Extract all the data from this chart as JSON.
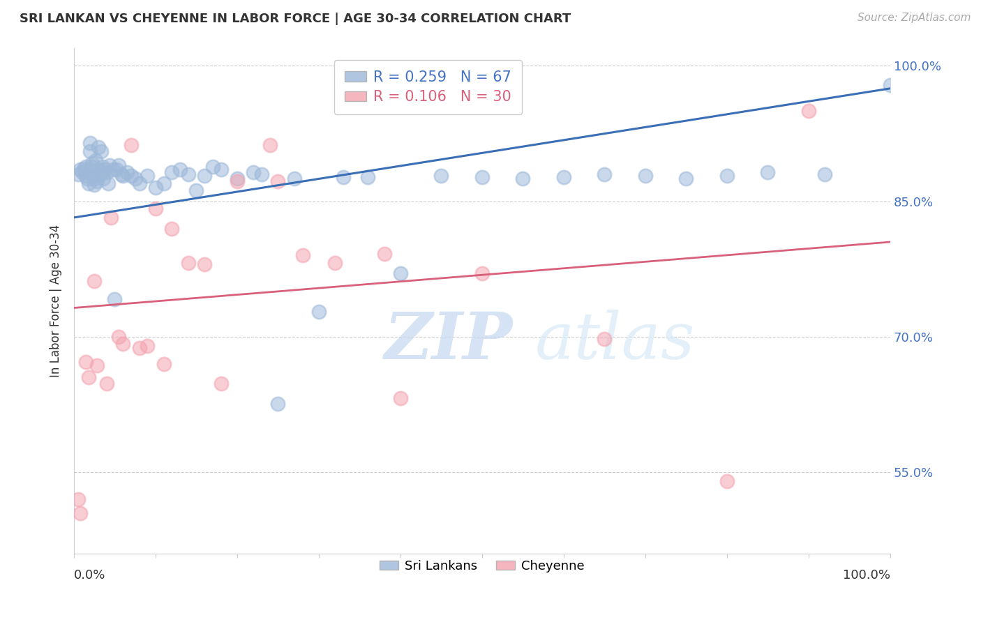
{
  "title": "SRI LANKAN VS CHEYENNE IN LABOR FORCE | AGE 30-34 CORRELATION CHART",
  "source": "Source: ZipAtlas.com",
  "ylabel": "In Labor Force | Age 30-34",
  "xlim": [
    0.0,
    1.0
  ],
  "ylim": [
    0.46,
    1.02
  ],
  "yticks": [
    0.55,
    0.7,
    0.85,
    1.0
  ],
  "ytick_labels": [
    "55.0%",
    "70.0%",
    "85.0%",
    "100.0%"
  ],
  "legend_blue_r": "R = 0.259",
  "legend_blue_n": "N = 67",
  "legend_pink_r": "R = 0.106",
  "legend_pink_n": "N = 30",
  "legend_blue_label": "Sri Lankans",
  "legend_pink_label": "Cheyenne",
  "blue_color": "#9DB8D9",
  "pink_color": "#F4A4B0",
  "trendline_blue_color": "#3A6EB5",
  "trendline_pink_color": "#D9607A",
  "watermark_zip": "ZIP",
  "watermark_atlas": "atlas",
  "blue_scatter_x": [
    0.005,
    0.008,
    0.01,
    0.012,
    0.015,
    0.015,
    0.016,
    0.018,
    0.02,
    0.02,
    0.022,
    0.022,
    0.023,
    0.025,
    0.025,
    0.027,
    0.028,
    0.03,
    0.03,
    0.032,
    0.033,
    0.035,
    0.036,
    0.038,
    0.04,
    0.042,
    0.044,
    0.048,
    0.05,
    0.052,
    0.055,
    0.058,
    0.06,
    0.065,
    0.07,
    0.075,
    0.08,
    0.09,
    0.1,
    0.11,
    0.12,
    0.13,
    0.14,
    0.15,
    0.16,
    0.17,
    0.18,
    0.2,
    0.22,
    0.23,
    0.25,
    0.27,
    0.3,
    0.33,
    0.36,
    0.4,
    0.45,
    0.5,
    0.55,
    0.6,
    0.65,
    0.7,
    0.75,
    0.8,
    0.85,
    0.92,
    1.0
  ],
  "blue_scatter_y": [
    0.88,
    0.885,
    0.882,
    0.886,
    0.888,
    0.878,
    0.875,
    0.87,
    0.915,
    0.905,
    0.892,
    0.888,
    0.878,
    0.875,
    0.868,
    0.895,
    0.872,
    0.91,
    0.885,
    0.88,
    0.905,
    0.888,
    0.875,
    0.885,
    0.882,
    0.87,
    0.89,
    0.885,
    0.742,
    0.885,
    0.89,
    0.88,
    0.878,
    0.882,
    0.878,
    0.875,
    0.87,
    0.878,
    0.865,
    0.87,
    0.882,
    0.885,
    0.88,
    0.862,
    0.878,
    0.888,
    0.885,
    0.875,
    0.882,
    0.88,
    0.626,
    0.875,
    0.728,
    0.877,
    0.877,
    0.77,
    0.878,
    0.877,
    0.875,
    0.877,
    0.88,
    0.878,
    0.875,
    0.878,
    0.882,
    0.88,
    0.979
  ],
  "pink_scatter_x": [
    0.005,
    0.008,
    0.015,
    0.018,
    0.025,
    0.028,
    0.04,
    0.045,
    0.055,
    0.06,
    0.07,
    0.08,
    0.09,
    0.1,
    0.11,
    0.12,
    0.14,
    0.16,
    0.18,
    0.2,
    0.24,
    0.25,
    0.28,
    0.32,
    0.38,
    0.4,
    0.5,
    0.65,
    0.8,
    0.9
  ],
  "pink_scatter_y": [
    0.52,
    0.505,
    0.672,
    0.655,
    0.762,
    0.668,
    0.648,
    0.832,
    0.7,
    0.692,
    0.912,
    0.688,
    0.69,
    0.842,
    0.67,
    0.82,
    0.782,
    0.78,
    0.648,
    0.872,
    0.912,
    0.872,
    0.79,
    0.782,
    0.792,
    0.632,
    0.77,
    0.698,
    0.54,
    0.95
  ],
  "blue_trend_x": [
    0.0,
    1.0
  ],
  "blue_trend_y_start": 0.832,
  "blue_trend_y_end": 0.975,
  "pink_trend_x": [
    0.0,
    1.0
  ],
  "pink_trend_y_start": 0.732,
  "pink_trend_y_end": 0.805
}
